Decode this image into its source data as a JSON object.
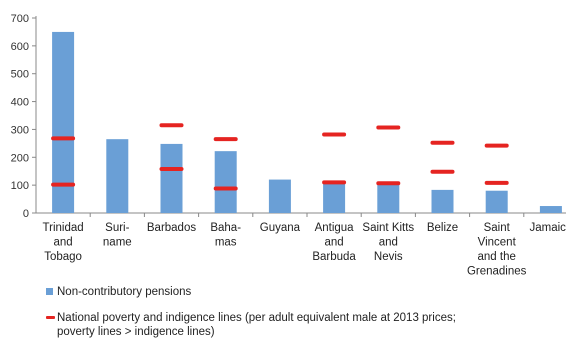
{
  "chart_data": {
    "type": "bar",
    "categories": [
      [
        "Trinidad",
        "and",
        "Tobago"
      ],
      [
        "Suri-",
        "name"
      ],
      [
        "Barbados"
      ],
      [
        "Baha-",
        "mas"
      ],
      [
        "Guyana"
      ],
      [
        "Antigua",
        "and",
        "Barbuda"
      ],
      [
        "Saint Kitts",
        "and",
        "Nevis"
      ],
      [
        "Belize"
      ],
      [
        "Saint",
        "Vincent",
        "and the",
        "Grenadines"
      ],
      [
        "Jamaica"
      ]
    ],
    "series": [
      {
        "name": "Non-contributory pensions",
        "kind": "bar",
        "color": "#6a9fd6",
        "values": [
          650,
          265,
          248,
          222,
          120,
          108,
          105,
          83,
          80,
          25
        ]
      },
      {
        "name": "National poverty and indigence lines (per adult equivalent male at 2013 prices; poverty lines > indigence lines)",
        "kind": "marker",
        "color": "#e52421",
        "poverty": [
          268,
          null,
          315,
          265,
          null,
          282,
          307,
          252,
          242,
          null
        ],
        "indigence": [
          102,
          null,
          158,
          88,
          null,
          110,
          107,
          148,
          108,
          null
        ]
      }
    ],
    "ylim": [
      0,
      700
    ],
    "yticks": [
      0,
      100,
      200,
      300,
      400,
      500,
      600,
      700
    ],
    "grid": false,
    "legend_position": "bottom-left"
  },
  "legend": {
    "bar_label": "Non-contributory pensions",
    "line_label_1": "National poverty and indigence lines (per adult equivalent male at 2013 prices;",
    "line_label_2": "poverty lines > indigence lines)"
  }
}
